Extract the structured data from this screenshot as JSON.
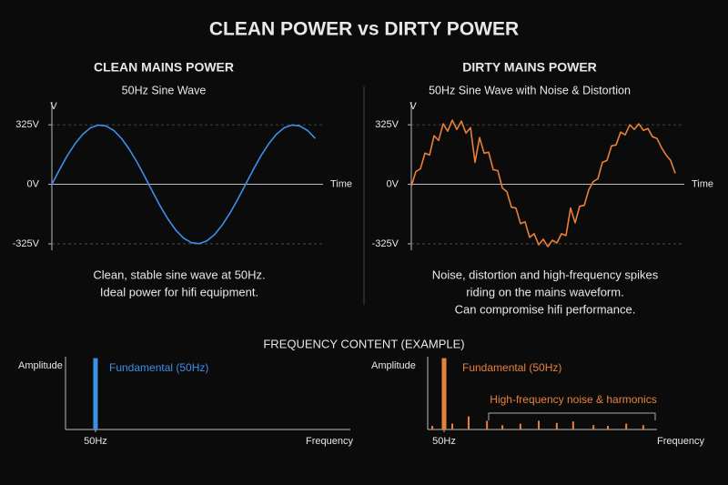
{
  "title": "CLEAN POWER vs DIRTY POWER",
  "section_title": "FREQUENCY CONTENT (EXAMPLE)",
  "chart_data": [
    {
      "type": "line",
      "title": "CLEAN MAINS POWER",
      "subtitle": "50Hz Sine Wave",
      "y_label": "V",
      "x_label": "Time",
      "color": "#3d8fe8",
      "caption": [
        "Clean, stable sine wave at 50Hz.",
        "Ideal power for hifi equipment."
      ],
      "xlim": [
        0,
        28
      ],
      "ylim": [
        -360,
        450
      ],
      "yticks": [
        {
          "value": 325,
          "label": "325V"
        },
        {
          "value": 0,
          "label": "0V"
        },
        {
          "value": -325,
          "label": "-325V"
        }
      ],
      "x": [
        0,
        0.8,
        1.6,
        2.4,
        3.2,
        4.0,
        4.8,
        5.6,
        6.4,
        7.2,
        8.0,
        8.8,
        9.6,
        10.4,
        11.2,
        12.0,
        12.8,
        13.6,
        14.4,
        15.2,
        16.0,
        16.8,
        17.6,
        18.4,
        19.2,
        20.0,
        20.8,
        21.6,
        22.4,
        23.2,
        24.0,
        24.8,
        25.6,
        26.4,
        27.2
      ],
      "values": [
        0,
        81,
        157,
        222,
        274,
        309,
        324,
        319,
        294,
        250,
        191,
        120,
        41,
        -41,
        -120,
        -191,
        -250,
        -294,
        -319,
        -324,
        -309,
        -274,
        -222,
        -157,
        -81,
        0,
        81,
        157,
        222,
        274,
        309,
        324,
        319,
        294,
        250
      ]
    },
    {
      "type": "line",
      "title": "DIRTY MAINS POWER",
      "subtitle": "50Hz Sine Wave with Noise & Distortion",
      "y_label": "V",
      "x_label": "Time",
      "color": "#e9803a",
      "caption": [
        "Noise, distortion and high-frequency spikes",
        "riding on the mains waveform.",
        "Can compromise hifi performance."
      ],
      "xlim": [
        0,
        30
      ],
      "ylim": [
        -360,
        450
      ],
      "yticks": [
        {
          "value": 325,
          "label": "325V"
        },
        {
          "value": 0,
          "label": "0V"
        },
        {
          "value": -325,
          "label": "-325V"
        }
      ],
      "x": [
        0,
        0.5,
        1,
        1.5,
        2,
        2.5,
        3,
        3.5,
        4,
        4.5,
        5,
        5.5,
        6,
        6.5,
        7,
        7.5,
        8,
        8.5,
        9,
        9.5,
        10,
        10.5,
        11,
        11.5,
        12,
        12.5,
        13,
        13.5,
        14,
        14.5,
        15,
        15.5,
        16,
        16.5,
        17,
        17.5,
        18,
        18.5,
        19,
        19.5,
        20,
        20.5,
        21,
        21.5,
        22,
        22.5,
        23,
        23.5,
        24,
        24.5,
        25,
        25.5,
        26,
        26.5,
        27,
        27.5,
        28,
        28.5,
        29
      ],
      "values": [
        -10,
        70,
        85,
        170,
        160,
        265,
        240,
        330,
        290,
        350,
        300,
        345,
        280,
        310,
        120,
        255,
        170,
        175,
        80,
        75,
        -20,
        -40,
        -125,
        -130,
        -215,
        -205,
        -290,
        -270,
        -330,
        -300,
        -340,
        -305,
        -320,
        -270,
        -280,
        -130,
        -210,
        -120,
        -115,
        -30,
        15,
        30,
        120,
        130,
        210,
        215,
        285,
        270,
        325,
        300,
        330,
        295,
        305,
        260,
        250,
        200,
        160,
        130,
        60
      ]
    },
    {
      "type": "bar",
      "y_label": "Amplitude",
      "x_label": "Frequency",
      "color": "#3d8fe8",
      "annotations": [
        "Fundamental (50Hz)"
      ],
      "xlim": [
        0,
        475
      ],
      "ylim": [
        0,
        100
      ],
      "xticks": [
        {
          "value": 50,
          "label": "50Hz"
        }
      ],
      "x": [
        50
      ],
      "values": [
        98
      ]
    },
    {
      "type": "bar",
      "y_label": "Amplitude",
      "x_label": "Frequency",
      "color": "#e9803a",
      "annotations": [
        "Fundamental (50Hz)",
        "High-frequency noise & harmonics"
      ],
      "xlim": [
        0,
        700
      ],
      "ylim": [
        0,
        100
      ],
      "xticks": [
        {
          "value": 50,
          "label": "50Hz"
        }
      ],
      "x": [
        14,
        50,
        75,
        125,
        181,
        228,
        283,
        339,
        394,
        444,
        506,
        550,
        606,
        658
      ],
      "values": [
        5,
        98,
        8,
        18,
        12,
        6,
        8,
        12,
        9,
        11,
        6,
        5,
        8,
        6
      ]
    }
  ]
}
